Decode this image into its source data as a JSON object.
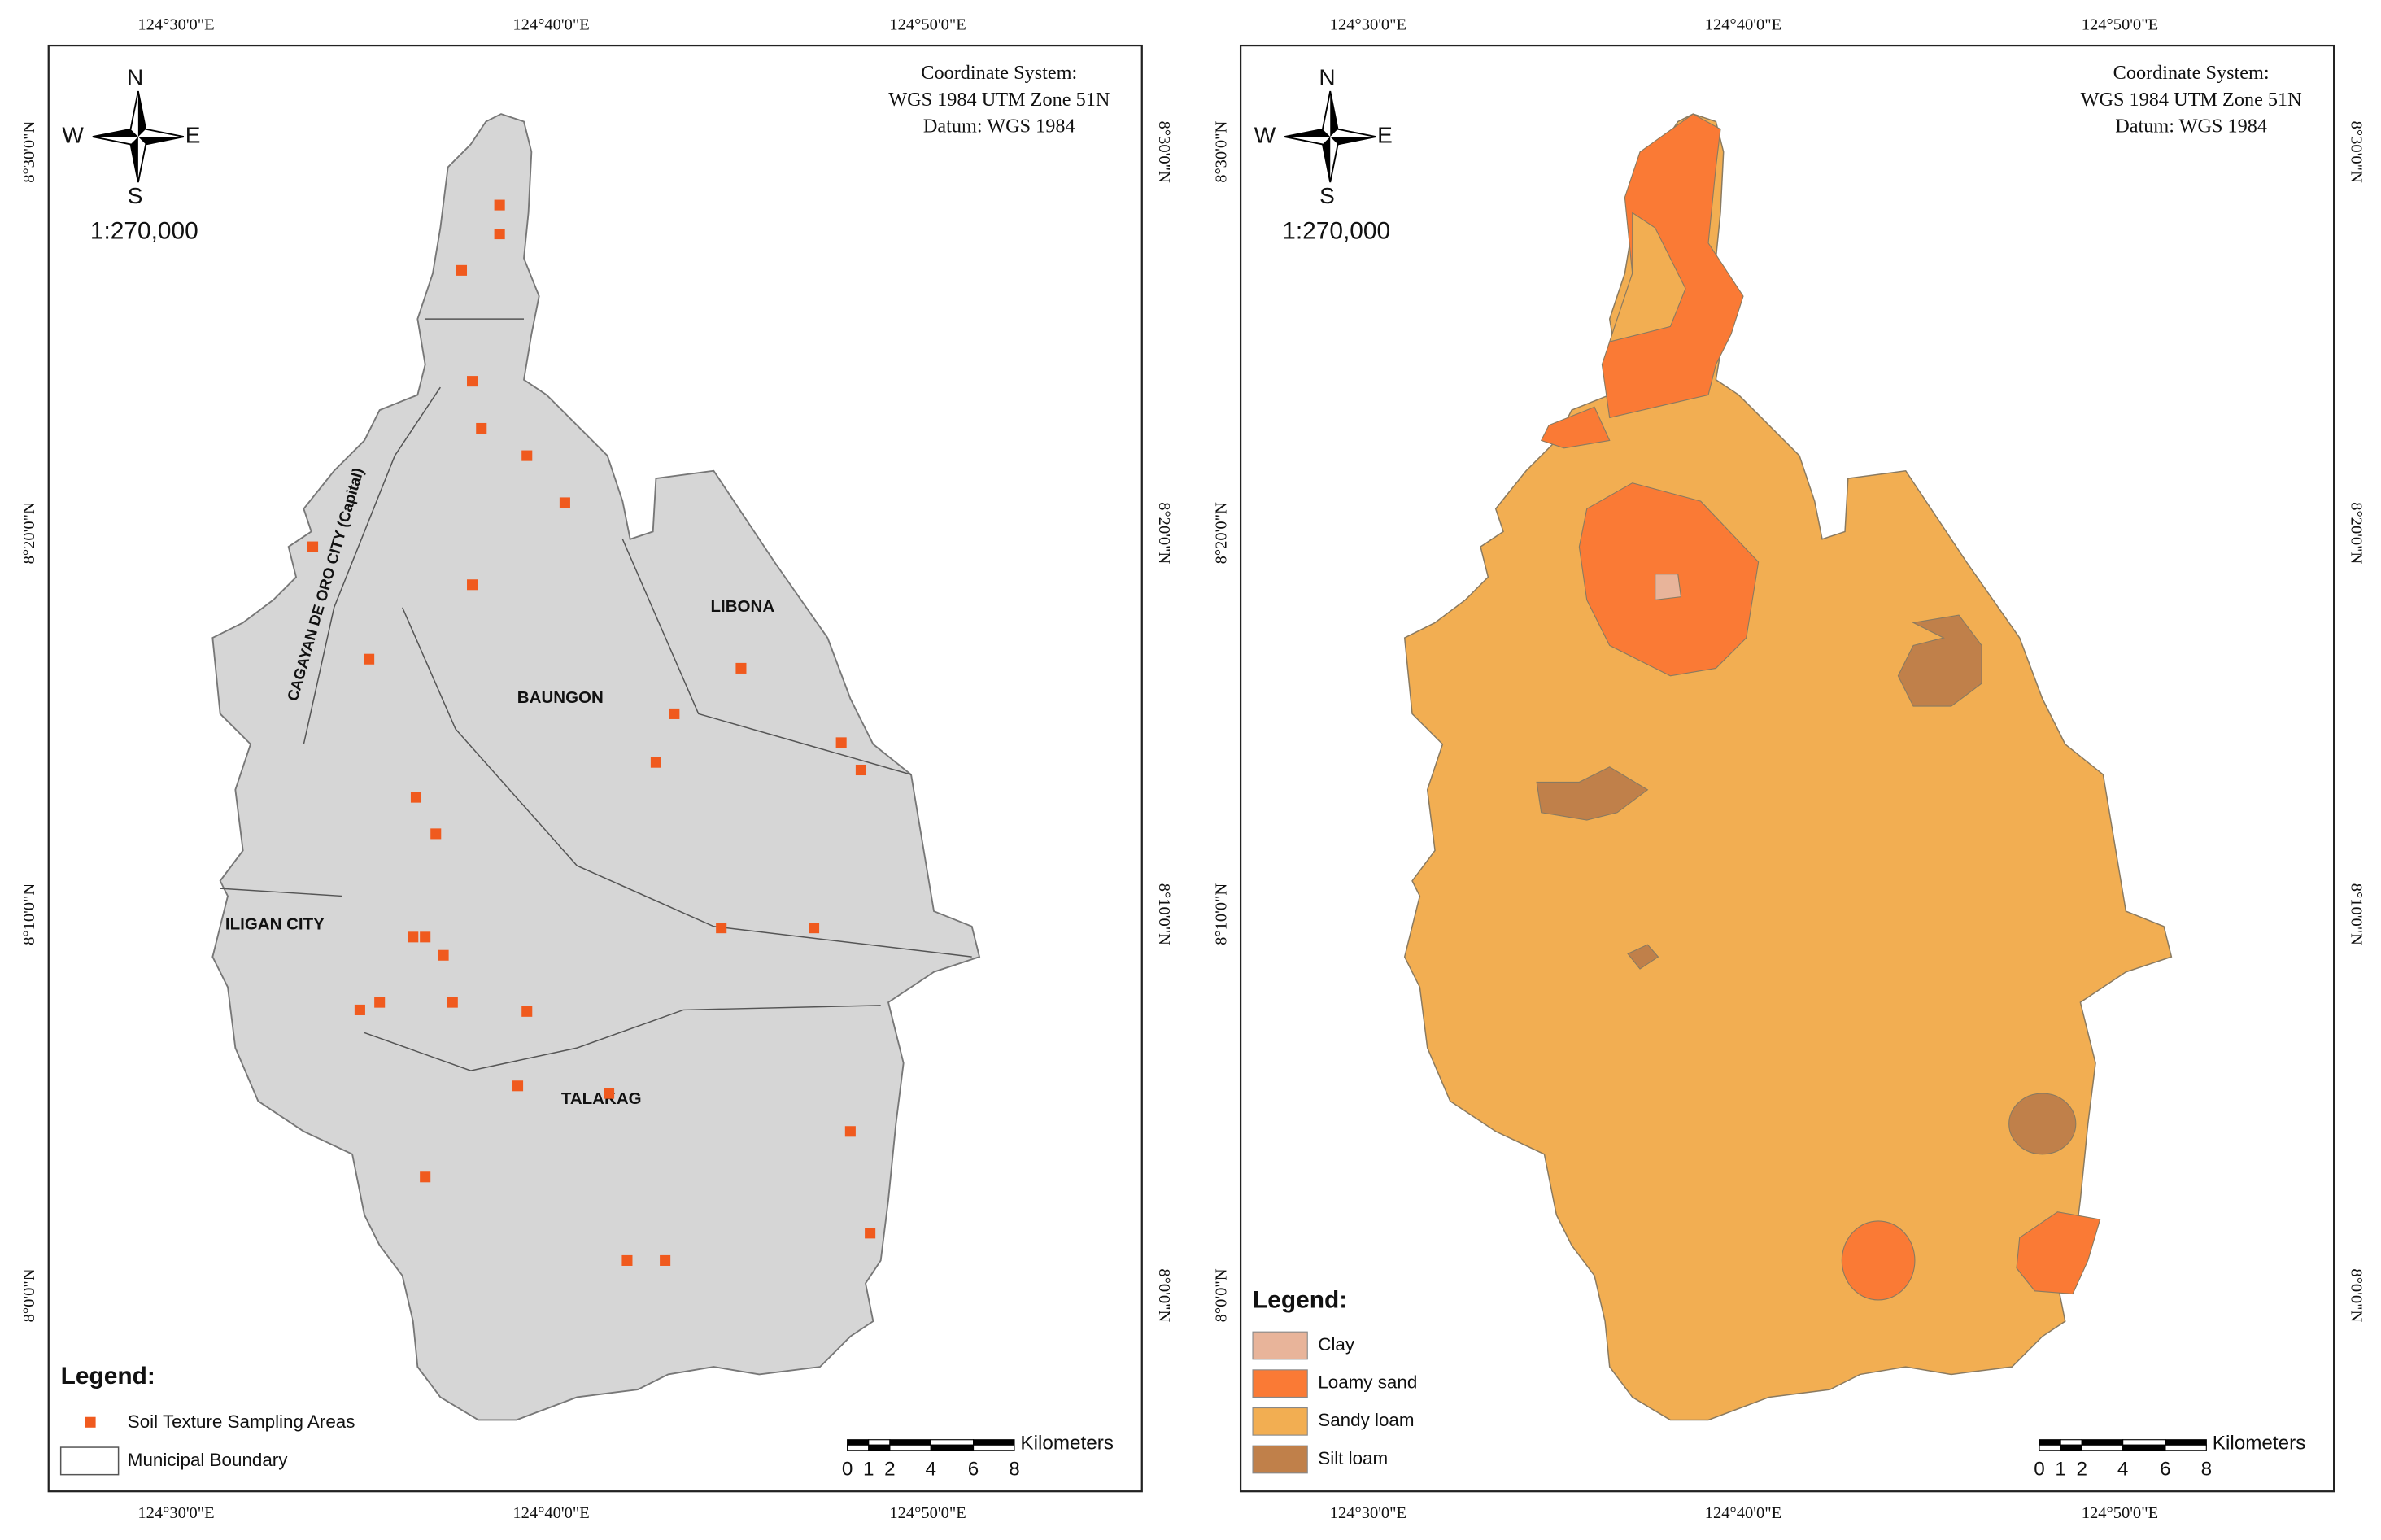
{
  "maps": [
    {
      "graticule": {
        "longitude": [
          "124°30'0\"E",
          "124°40'0\"E",
          "124°50'0\"E"
        ],
        "latitude": [
          "8°30'0\"N",
          "8°20'0\"N",
          "8°10'0\"N",
          "8°0'0\"N"
        ]
      },
      "north_arrow": {
        "n": "N",
        "e": "E",
        "s": "S",
        "w": "W"
      },
      "scale": "1:270,000",
      "coordinate_system": [
        "Coordinate System:",
        "WGS 1984 UTM Zone 51N",
        "Datum: WGS 1984"
      ],
      "place_labels": [
        "CAGAYAN DE ORO CITY (Capital)",
        "LIBONA",
        "BAUNGON",
        "ILIGAN CITY",
        "TALAKAG"
      ],
      "legend": {
        "title": "Legend:",
        "items": [
          {
            "label": "Soil Texture Sampling Areas",
            "color": "#f05a1e"
          },
          {
            "label": "Municipal Boundary",
            "color": "#ffffff"
          }
        ]
      },
      "scale_bar": {
        "ticks": [
          "0",
          "1",
          "2",
          "4",
          "6",
          "8"
        ],
        "unit": "Kilometers"
      }
    },
    {
      "graticule": {
        "longitude": [
          "124°30'0\"E",
          "124°40'0\"E",
          "124°50'0\"E"
        ],
        "latitude": [
          "8°30'0\"N",
          "8°20'0\"N",
          "8°10'0\"N",
          "8°0'0\"N"
        ]
      },
      "north_arrow": {
        "n": "N",
        "e": "E",
        "s": "S",
        "w": "W"
      },
      "scale": "1:270,000",
      "coordinate_system": [
        "Coordinate System:",
        "WGS 1984 UTM Zone 51N",
        "Datum: WGS 1984"
      ],
      "legend": {
        "title": "Legend:",
        "items": [
          {
            "label": "Clay",
            "color": "#e8b49a"
          },
          {
            "label": "Loamy sand",
            "color": "#fa7a35"
          },
          {
            "label": "Sandy loam",
            "color": "#f2ae52"
          },
          {
            "label": "Silt loam",
            "color": "#c0804a"
          }
        ]
      },
      "scale_bar": {
        "ticks": [
          "0",
          "1",
          "2",
          "4",
          "6",
          "8"
        ],
        "unit": "Kilometers"
      }
    }
  ]
}
